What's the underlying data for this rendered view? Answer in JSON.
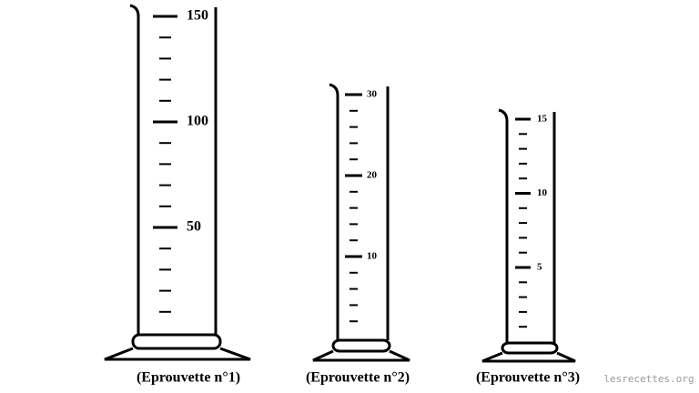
{
  "cylinders": [
    {
      "label": "(Eprouvette n°1)",
      "ticks": [
        50,
        100,
        150
      ]
    },
    {
      "label": "(Eprouvette n°2)",
      "ticks": [
        10,
        20,
        30
      ]
    },
    {
      "label": "(Eprouvette n°3)",
      "ticks": [
        5,
        10,
        15
      ]
    }
  ],
  "watermark": "lesrecettes.org"
}
